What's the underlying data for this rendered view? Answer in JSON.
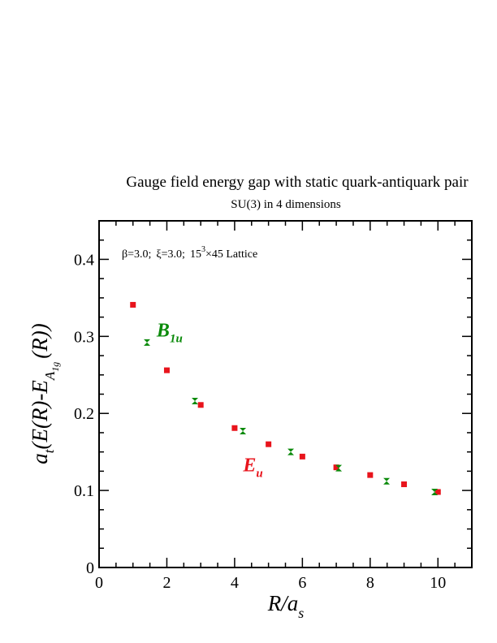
{
  "chart_data": {
    "type": "scatter",
    "title": "Gauge field energy gap with static quark-antiquark pair",
    "subtitle": "SU(3) in 4 dimensions",
    "annotation": {
      "beta": "β=3.0;",
      "xi": "ξ=3.0;",
      "lattice_base": "15",
      "lattice_exp": "3",
      "lattice_rest": "×45 Lattice"
    },
    "xlabel": {
      "main": "R/a",
      "sub": "s"
    },
    "ylabel": {
      "pre": "a",
      "pre_sub": "t",
      "mid": "(E(R)-E",
      "sub": "A",
      "subsub": "1g",
      "post": "(R))"
    },
    "xlim": [
      0,
      11
    ],
    "ylim": [
      0,
      0.45
    ],
    "x_ticks": [
      0,
      2,
      4,
      6,
      8,
      10
    ],
    "x_tick_labels": [
      "0",
      "2",
      "4",
      "6",
      "8",
      "10"
    ],
    "y_ticks": [
      0,
      0.1,
      0.2,
      0.3,
      0.4
    ],
    "y_tick_labels": [
      "0",
      "0.1",
      "0.2",
      "0.3",
      "0.4"
    ],
    "series": [
      {
        "label_main": "E",
        "label_sub": "u",
        "color": "#e8141c",
        "marker": "square",
        "label_pos": [
          4.25,
          0.125
        ],
        "x": [
          1,
          2,
          3,
          4,
          5,
          6,
          7,
          8,
          9,
          10
        ],
        "y": [
          0.341,
          0.256,
          0.211,
          0.181,
          0.16,
          0.144,
          0.13,
          0.12,
          0.108,
          0.098
        ]
      },
      {
        "label_main": "B",
        "label_sub": "1u",
        "color": "#0a8a0a",
        "marker": "hourglass",
        "label_pos": [
          1.7,
          0.3
        ],
        "x": [
          1.414,
          2.828,
          4.243,
          5.657,
          7.071,
          8.485,
          9.899
        ],
        "y": [
          0.292,
          0.216,
          0.177,
          0.15,
          0.129,
          0.112,
          0.098
        ]
      }
    ]
  }
}
